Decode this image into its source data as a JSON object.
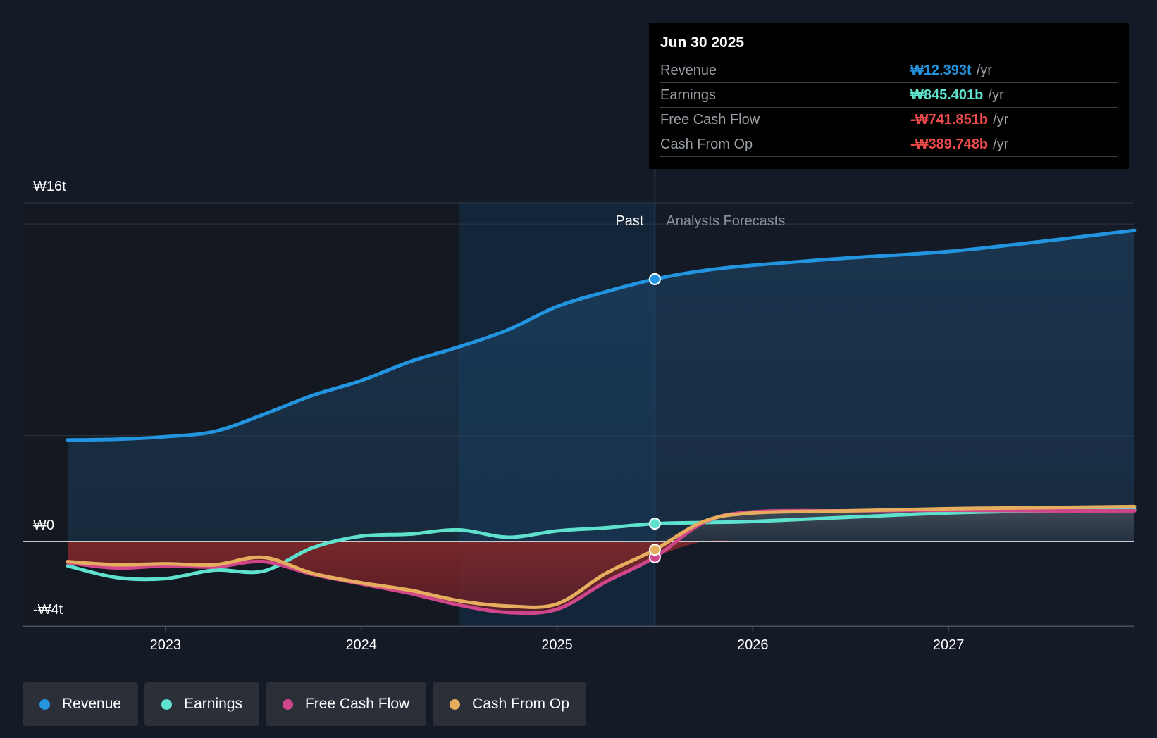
{
  "chart_data": {
    "type": "line",
    "y_axis": {
      "min": -4,
      "max": 16,
      "unit": "trillion KRW",
      "labels": [
        "₩16t",
        "₩0",
        "-₩4t"
      ]
    },
    "x_axis": {
      "min": 2022.5,
      "max": 2027.95,
      "ticks": [
        "2023",
        "2024",
        "2025",
        "2026",
        "2027"
      ]
    },
    "regions": {
      "past_label": "Past",
      "forecast_label": "Analysts Forecasts",
      "highlight_start": 2024.5,
      "divider": 2025.5
    },
    "series": [
      {
        "name": "Revenue",
        "color": "#2394df",
        "points": [
          [
            2022.5,
            4.8
          ],
          [
            2022.75,
            4.83
          ],
          [
            2023.0,
            4.95
          ],
          [
            2023.25,
            5.2
          ],
          [
            2023.5,
            6.0
          ],
          [
            2023.75,
            6.9
          ],
          [
            2024.0,
            7.6
          ],
          [
            2024.25,
            8.5
          ],
          [
            2024.5,
            9.2
          ],
          [
            2024.75,
            10.0
          ],
          [
            2025.0,
            11.1
          ],
          [
            2025.25,
            11.8
          ],
          [
            2025.5,
            12.393
          ],
          [
            2025.75,
            12.8
          ],
          [
            2026.0,
            13.05
          ],
          [
            2026.5,
            13.4
          ],
          [
            2027.0,
            13.7
          ],
          [
            2027.5,
            14.2
          ],
          [
            2027.95,
            14.7
          ]
        ]
      },
      {
        "name": "Earnings",
        "color": "#5ee2cd",
        "points": [
          [
            2022.5,
            -1.15
          ],
          [
            2022.75,
            -1.7
          ],
          [
            2023.0,
            -1.75
          ],
          [
            2023.25,
            -1.35
          ],
          [
            2023.5,
            -1.4
          ],
          [
            2023.75,
            -0.3
          ],
          [
            2024.0,
            0.25
          ],
          [
            2024.25,
            0.35
          ],
          [
            2024.5,
            0.55
          ],
          [
            2024.75,
            0.2
          ],
          [
            2025.0,
            0.5
          ],
          [
            2025.25,
            0.65
          ],
          [
            2025.5,
            0.845
          ],
          [
            2025.75,
            0.9
          ],
          [
            2026.0,
            0.95
          ],
          [
            2026.5,
            1.15
          ],
          [
            2027.0,
            1.35
          ],
          [
            2027.5,
            1.45
          ],
          [
            2027.95,
            1.5
          ]
        ]
      },
      {
        "name": "Free Cash Flow",
        "color": "#d0468b",
        "points": [
          [
            2022.5,
            -1.0
          ],
          [
            2022.75,
            -1.25
          ],
          [
            2023.0,
            -1.15
          ],
          [
            2023.25,
            -1.2
          ],
          [
            2023.5,
            -0.95
          ],
          [
            2023.75,
            -1.55
          ],
          [
            2024.0,
            -2.0
          ],
          [
            2024.25,
            -2.45
          ],
          [
            2024.5,
            -3.0
          ],
          [
            2024.75,
            -3.35
          ],
          [
            2025.0,
            -3.2
          ],
          [
            2025.25,
            -1.9
          ],
          [
            2025.5,
            -0.742
          ],
          [
            2025.75,
            0.9
          ],
          [
            2026.0,
            1.4
          ],
          [
            2026.5,
            1.45
          ],
          [
            2027.0,
            1.48
          ],
          [
            2027.5,
            1.45
          ],
          [
            2027.95,
            1.45
          ]
        ]
      },
      {
        "name": "Cash From Op",
        "color": "#e6ad5e",
        "points": [
          [
            2022.5,
            -0.95
          ],
          [
            2022.75,
            -1.1
          ],
          [
            2023.0,
            -1.05
          ],
          [
            2023.25,
            -1.1
          ],
          [
            2023.5,
            -0.75
          ],
          [
            2023.75,
            -1.5
          ],
          [
            2024.0,
            -1.95
          ],
          [
            2024.25,
            -2.3
          ],
          [
            2024.5,
            -2.8
          ],
          [
            2024.75,
            -3.05
          ],
          [
            2025.0,
            -2.95
          ],
          [
            2025.25,
            -1.5
          ],
          [
            2025.5,
            -0.39
          ],
          [
            2025.75,
            0.95
          ],
          [
            2026.0,
            1.35
          ],
          [
            2026.5,
            1.45
          ],
          [
            2027.0,
            1.55
          ],
          [
            2027.5,
            1.6
          ],
          [
            2027.95,
            1.65
          ]
        ]
      }
    ]
  },
  "tooltip": {
    "date": "Jun 30 2025",
    "rows": [
      {
        "label": "Revenue",
        "value": "₩12.393t",
        "unit": "/yr",
        "color": "#2394df"
      },
      {
        "label": "Earnings",
        "value": "₩845.401b",
        "unit": "/yr",
        "color": "#5ee2cd"
      },
      {
        "label": "Free Cash Flow",
        "value": "-₩741.851b",
        "unit": "/yr",
        "color": "#f04b4b"
      },
      {
        "label": "Cash From Op",
        "value": "-₩389.748b",
        "unit": "/yr",
        "color": "#f04b4b"
      }
    ]
  },
  "legend": [
    {
      "label": "Revenue",
      "color": "#2394df"
    },
    {
      "label": "Earnings",
      "color": "#5ee2cd"
    },
    {
      "label": "Free Cash Flow",
      "color": "#d0468b"
    },
    {
      "label": "Cash From Op",
      "color": "#e6ad5e"
    }
  ]
}
